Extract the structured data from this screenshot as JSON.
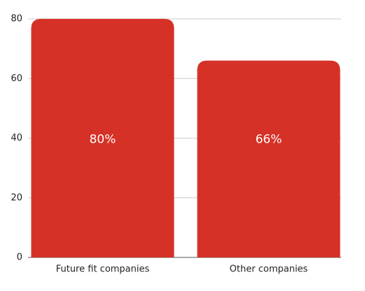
{
  "chart_data": {
    "type": "bar",
    "categories": [
      "Future fit companies",
      "Other companies"
    ],
    "values": [
      80,
      66
    ],
    "value_labels": [
      "80%",
      "66%"
    ],
    "color": "#d63126",
    "ylim": [
      0,
      80
    ],
    "yticks": [
      0,
      20,
      40,
      60,
      80
    ],
    "grid": true
  }
}
